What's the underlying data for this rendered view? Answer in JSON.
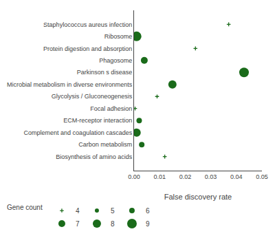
{
  "chart_data": {
    "type": "scatter",
    "xlabel": "False discovery rate",
    "categories": [
      "Staphylococcus aureus infection",
      "Ribosome",
      "Protein digestion and absorption",
      "Phagosome",
      "Parkinson s disease",
      "Microbial metabolism in diverse environments",
      "Glycolysis / Gluconeogenesis",
      "Focal adhesion",
      "ECM-receptor interaction",
      "Complement and coagulation cascades",
      "Carbon metabolism",
      "Biosynthesis of amino acids"
    ],
    "series": [
      {
        "name": "4",
        "gene_count": 4,
        "marker": "cross",
        "values": [
          0.037,
          null,
          0.024,
          null,
          null,
          null,
          0.009,
          0.0004,
          null,
          null,
          null,
          0.012
        ]
      },
      {
        "name": "5",
        "gene_count": 5,
        "marker": "circle",
        "values": [
          null,
          null,
          null,
          null,
          null,
          null,
          null,
          null,
          null,
          null,
          null,
          null
        ]
      },
      {
        "name": "6",
        "gene_count": 6,
        "marker": "circle",
        "values": [
          null,
          null,
          null,
          null,
          null,
          null,
          null,
          null,
          0.002,
          null,
          0.003,
          null
        ]
      },
      {
        "name": "7",
        "gene_count": 7,
        "marker": "circle",
        "values": [
          null,
          null,
          null,
          0.004,
          null,
          null,
          null,
          null,
          null,
          null,
          null,
          null
        ]
      },
      {
        "name": "8",
        "gene_count": 8,
        "marker": "circle",
        "values": [
          null,
          null,
          null,
          null,
          null,
          0.015,
          null,
          null,
          null,
          0.001,
          null,
          null
        ]
      },
      {
        "name": "9",
        "gene_count": 9,
        "marker": "circle",
        "values": [
          null,
          0.001,
          null,
          null,
          0.043,
          null,
          null,
          null,
          null,
          null,
          null,
          null
        ]
      }
    ],
    "color": "#1a6b1a",
    "legend_title": "Gene count",
    "legend": "bottom",
    "xlim": [
      0.0,
      0.05
    ],
    "xticks": [
      {
        "value": 0,
        "label": "0.00"
      },
      0.01,
      0.02,
      0.03,
      0.04,
      0.05
    ],
    "grid": false
  }
}
